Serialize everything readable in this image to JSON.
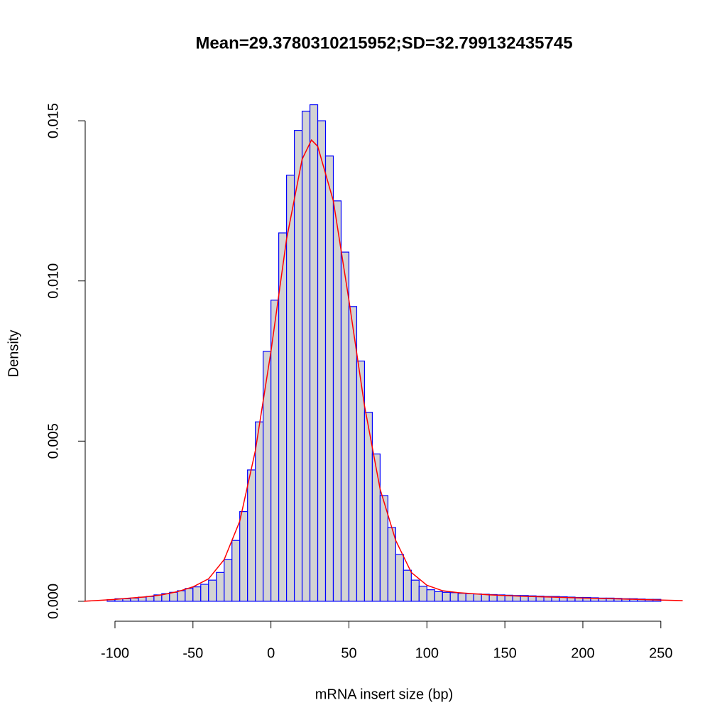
{
  "chart_data": {
    "type": "histogram",
    "title": "Mean=29.3780310215952;SD=32.799132435745",
    "xlabel": "mRNA insert size (bp)",
    "ylabel": "Density",
    "bins": [
      -105,
      -100,
      -95,
      -90,
      -85,
      -80,
      -75,
      -70,
      -65,
      -60,
      -55,
      -50,
      -45,
      -40,
      -35,
      -30,
      -25,
      -20,
      -15,
      -10,
      -5,
      0,
      5,
      10,
      15,
      20,
      25,
      30,
      35,
      40,
      45,
      50,
      55,
      60,
      65,
      70,
      75,
      80,
      85,
      90,
      95,
      100,
      105,
      110,
      115,
      120,
      125,
      130,
      135,
      140,
      145,
      150,
      155,
      160,
      165,
      170,
      175,
      180,
      185,
      190,
      195,
      200,
      205,
      210,
      215,
      220,
      225,
      230,
      235,
      240,
      245,
      250
    ],
    "values": [
      5e-05,
      8e-05,
      8e-05,
      0.0001,
      0.00013,
      0.00015,
      0.0002,
      0.00024,
      0.00028,
      0.00033,
      0.0004,
      0.00045,
      0.00053,
      0.00066,
      0.0009,
      0.0013,
      0.0019,
      0.0028,
      0.0041,
      0.0056,
      0.0078,
      0.0094,
      0.0115,
      0.0133,
      0.0147,
      0.0153,
      0.0155,
      0.015,
      0.0139,
      0.0125,
      0.0109,
      0.0092,
      0.0075,
      0.0059,
      0.0046,
      0.0033,
      0.0023,
      0.00146,
      0.00097,
      0.00066,
      0.00047,
      0.00036,
      0.0003,
      0.00028,
      0.00027,
      0.00025,
      0.00024,
      0.00023,
      0.00022,
      0.00021,
      0.0002,
      0.00019,
      0.00018,
      0.00018,
      0.00017,
      0.00016,
      0.00015,
      0.00015,
      0.00014,
      0.00013,
      0.00012,
      0.00012,
      0.00011,
      0.0001,
      0.0001,
      9e-05,
      8e-05,
      8e-05,
      7e-05,
      6e-05,
      6e-05
    ],
    "color": "#d3d3d3",
    "edgecolor": "#0000ff",
    "density": {
      "color": "#ff0000",
      "x": [
        -120,
        -110,
        -100,
        -90,
        -80,
        -70,
        -60,
        -50,
        -40,
        -30,
        -20,
        -10,
        0,
        10,
        20,
        26,
        30,
        40,
        50,
        60,
        70,
        80,
        90,
        100,
        110,
        120,
        140,
        160,
        180,
        200,
        220,
        240,
        264
      ],
      "values": [
        0,
        3e-05,
        6e-05,
        0.0001,
        0.00014,
        0.0002,
        0.0003,
        0.00045,
        0.0007,
        0.0013,
        0.0025,
        0.0047,
        0.0078,
        0.0113,
        0.0138,
        0.0144,
        0.0142,
        0.0125,
        0.0094,
        0.0061,
        0.0035,
        0.0019,
        0.0009,
        0.0005,
        0.00033,
        0.00027,
        0.0002,
        0.00016,
        0.00013,
        0.0001,
        8e-05,
        5e-05,
        2e-05
      ]
    },
    "xlim": [
      -119.1,
      264.2
    ],
    "ylim": [
      -0.0006,
      0.0158
    ],
    "xticks": [
      -100,
      -50,
      0,
      50,
      100,
      150,
      200,
      250
    ],
    "yticks": [
      {
        "value": 0,
        "label": "0.000"
      },
      0.005,
      {
        "value": 0.01,
        "label": "0.010"
      },
      0.015
    ]
  }
}
